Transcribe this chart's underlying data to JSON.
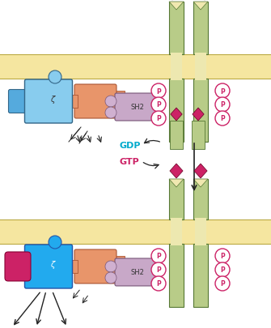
{
  "bg_color": "#ffffff",
  "membrane_color": "#f5e6a0",
  "receptor_color": "#b8cc88",
  "receptor_edge": "#557733",
  "ligand_color": "#cc2266",
  "ras_inactive_color": "#88ccee",
  "ras_inactive_protrusion": "#55aadd",
  "ras_active_color": "#22aaee",
  "ras_active_protrusion": "#1199dd",
  "sos_color": "#e8956a",
  "sh2_color": "#c8a8c8",
  "sh2_text": "SH2",
  "p_circle_color": "#ffffff",
  "p_circle_edge": "#cc2266",
  "p_text_color": "#cc2266",
  "gdp_text": "GDP",
  "gtp_text": "GTP",
  "gdp_color": "#00aacc",
  "gtp_color": "#cc2266",
  "arrow_color": "#222222",
  "effector_color": "#cc2266"
}
